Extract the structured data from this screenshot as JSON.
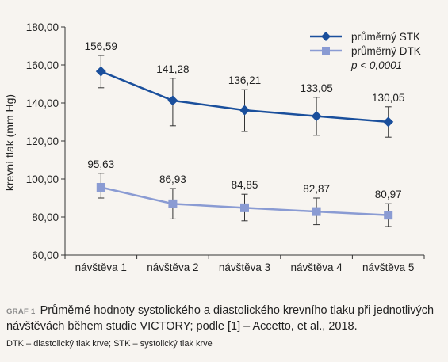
{
  "chart_data": {
    "type": "line",
    "categories": [
      "návštěva 1",
      "návštěva 2",
      "návštěva 3",
      "návštěva 4",
      "návštěva 5"
    ],
    "series": [
      {
        "name": "průměrný STK",
        "color": "#1a4f9c",
        "marker": "diamond",
        "values": [
          156.59,
          141.28,
          136.21,
          133.05,
          130.05
        ],
        "labels": [
          "156,59",
          "141,28",
          "136,21",
          "133,05",
          "130,05"
        ],
        "error_low": [
          148,
          128,
          125,
          123,
          122
        ],
        "error_high": [
          165,
          153,
          147,
          143,
          138
        ]
      },
      {
        "name": "průměrný DTK",
        "color": "#8a9bd3",
        "marker": "square",
        "values": [
          95.63,
          86.93,
          84.85,
          82.87,
          80.97
        ],
        "labels": [
          "95,63",
          "86,93",
          "84,85",
          "82,87",
          "80,97"
        ],
        "error_low": [
          90,
          79,
          78,
          76,
          75
        ],
        "error_high": [
          103,
          95,
          92,
          90,
          87
        ]
      }
    ],
    "ylabel": "krevní tlak (mm Hg)",
    "xlabel": "",
    "ylim": [
      60,
      180
    ],
    "yticks": [
      60,
      80,
      100,
      120,
      140,
      160,
      180
    ],
    "ytick_labels": [
      "60,00",
      "80,00",
      "100,00",
      "120,00",
      "140,00",
      "160,00",
      "180,00"
    ],
    "grid": false,
    "legend_position": "top-right",
    "annotation": "p < 0,0001"
  },
  "caption": {
    "label": "GRAF 1",
    "text": "Průměrné hodnoty systolického a diastolického krevního tlaku při jednotlivých návštěvách během studie VICTORY; podle [1] – Accetto, et al., 2018."
  },
  "footnote": "DTK – diastolický tlak krve; STK – systolický tlak krve"
}
